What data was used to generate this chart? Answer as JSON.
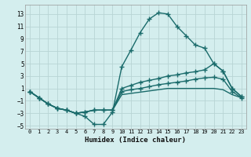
{
  "xlabel": "Humidex (Indice chaleur)",
  "bg_color": "#d4eeee",
  "grid_color": "#b8d4d4",
  "line_color": "#1a6b6b",
  "xlim": [
    -0.5,
    23.5
  ],
  "ylim": [
    -5.5,
    14.5
  ],
  "xticks": [
    0,
    1,
    2,
    3,
    4,
    5,
    6,
    7,
    8,
    9,
    10,
    11,
    12,
    13,
    14,
    15,
    16,
    17,
    18,
    19,
    20,
    21,
    22,
    23
  ],
  "yticks": [
    -5,
    -3,
    -1,
    1,
    3,
    5,
    7,
    9,
    11,
    13
  ],
  "line1_x": [
    0,
    1,
    2,
    3,
    4,
    5,
    6,
    7,
    8,
    9,
    10,
    11,
    12,
    13,
    14,
    15,
    16,
    17,
    18,
    19,
    20,
    21,
    22,
    23
  ],
  "line1_y": [
    0.5,
    -0.5,
    -1.5,
    -2.2,
    -2.5,
    -3.0,
    -3.5,
    -4.8,
    -4.8,
    -2.8,
    4.5,
    7.2,
    10.0,
    12.2,
    13.2,
    13.0,
    11.0,
    9.5,
    8.0,
    7.5,
    5.0,
    3.8,
    1.0,
    -0.3
  ],
  "line2_x": [
    0,
    1,
    2,
    3,
    4,
    5,
    6,
    7,
    8,
    9,
    10,
    11,
    12,
    13,
    14,
    15,
    16,
    17,
    18,
    19,
    20,
    21,
    22,
    23
  ],
  "line2_y": [
    0.5,
    -0.5,
    -1.5,
    -2.2,
    -2.5,
    -3.0,
    -2.8,
    -2.5,
    -2.5,
    -2.5,
    1.0,
    1.5,
    2.0,
    2.3,
    2.6,
    3.0,
    3.2,
    3.5,
    3.7,
    4.0,
    5.0,
    3.8,
    1.0,
    -0.3
  ],
  "line3_x": [
    0,
    1,
    2,
    3,
    4,
    5,
    6,
    7,
    8,
    9,
    10,
    11,
    12,
    13,
    14,
    15,
    16,
    17,
    18,
    19,
    20,
    21,
    22,
    23
  ],
  "line3_y": [
    0.5,
    -0.5,
    -1.5,
    -2.2,
    -2.5,
    -3.0,
    -2.8,
    -2.5,
    -2.5,
    -2.5,
    0.5,
    0.8,
    1.0,
    1.3,
    1.6,
    1.8,
    2.0,
    2.2,
    2.5,
    2.7,
    2.8,
    2.5,
    0.5,
    -0.5
  ],
  "line4_x": [
    0,
    1,
    2,
    3,
    4,
    5,
    6,
    7,
    8,
    9,
    10,
    11,
    12,
    13,
    14,
    15,
    16,
    17,
    18,
    19,
    20,
    21,
    22,
    23
  ],
  "line4_y": [
    0.5,
    -0.5,
    -1.5,
    -2.2,
    -2.5,
    -3.0,
    -2.8,
    -2.5,
    -2.5,
    -2.5,
    0.0,
    0.2,
    0.4,
    0.6,
    0.8,
    1.0,
    1.0,
    1.0,
    1.0,
    1.0,
    1.0,
    0.8,
    0.0,
    -0.5
  ]
}
